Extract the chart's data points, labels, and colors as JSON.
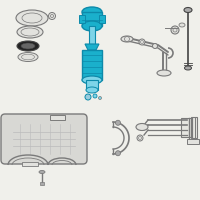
{
  "bg_color": "#f0f0eb",
  "outline_color": "#7a7a7a",
  "highlight_color": "#1ab0cc",
  "highlight_dark": "#0d8aaa",
  "highlight_light": "#7dd4e8",
  "dark_color": "#444444",
  "light_gray": "#c8c8c8",
  "mid_gray": "#aaaaaa",
  "fill_gray": "#e2e2de",
  "figsize": [
    2.0,
    2.0
  ],
  "dpi": 100
}
